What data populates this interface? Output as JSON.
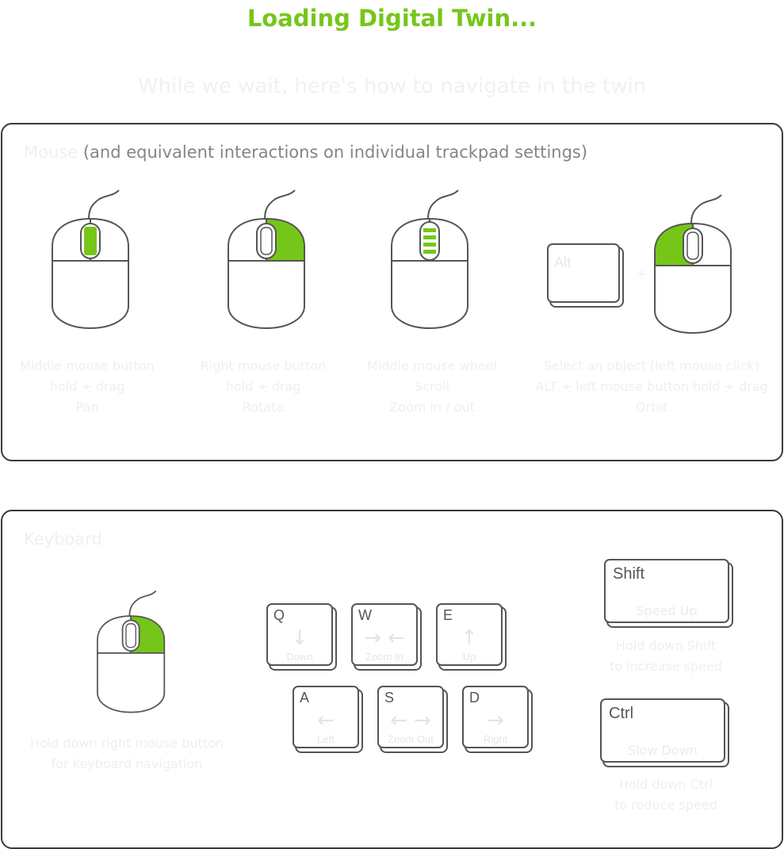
{
  "header": {
    "title": "Loading Digital Twin...",
    "subtitle": "While we wait, here's how to navigate in the twin"
  },
  "mouse_section": {
    "title_main": "Mouse",
    "title_note": "(and equivalent interactions on individual trackpad settings)",
    "plus": "+",
    "alt_key": "Alt",
    "items": [
      {
        "line1": "Middle mouse button",
        "line2": "hold + drag",
        "line3": "Pan"
      },
      {
        "line1": "Right mouse button",
        "line2": "hold + drag",
        "line3": "Rotate"
      },
      {
        "line1": "Middle mouse wheel",
        "line2": "Scroll",
        "line3": "Zoom in / out"
      },
      {
        "line1": "Select an object (left mouse click)",
        "line2": "ALT + left mouse button hold + drag",
        "line3": "Orbit"
      }
    ]
  },
  "keyboard_section": {
    "title": "Keyboard",
    "mouse_hint": {
      "line1": "Hold down right mouse button",
      "line2": "for keyboard navigation"
    },
    "keys": {
      "q": {
        "letter": "Q",
        "label": "Down",
        "arrow": "↓"
      },
      "w": {
        "letter": "W",
        "label": "Zoom In",
        "arrow": "→ ←"
      },
      "e": {
        "letter": "E",
        "label": "Up",
        "arrow": "↑"
      },
      "a": {
        "letter": "A",
        "label": "Left",
        "arrow": "←"
      },
      "s": {
        "letter": "S",
        "label": "Zoom Out",
        "arrow": "← →"
      },
      "d": {
        "letter": "D",
        "label": "Right",
        "arrow": "→"
      }
    },
    "shift": {
      "key": "Shift",
      "label": "Speed Up",
      "hint_line1": "Hold down Shift",
      "hint_line2": "to increase speed"
    },
    "ctrl": {
      "key": "Ctrl",
      "label": "Slow Down",
      "hint_line1": "Hold down Ctrl",
      "hint_line2": "to reduce speed"
    }
  },
  "colors": {
    "accent": "#76c61a",
    "outline": "#555555",
    "faint_text": "#efefef"
  }
}
